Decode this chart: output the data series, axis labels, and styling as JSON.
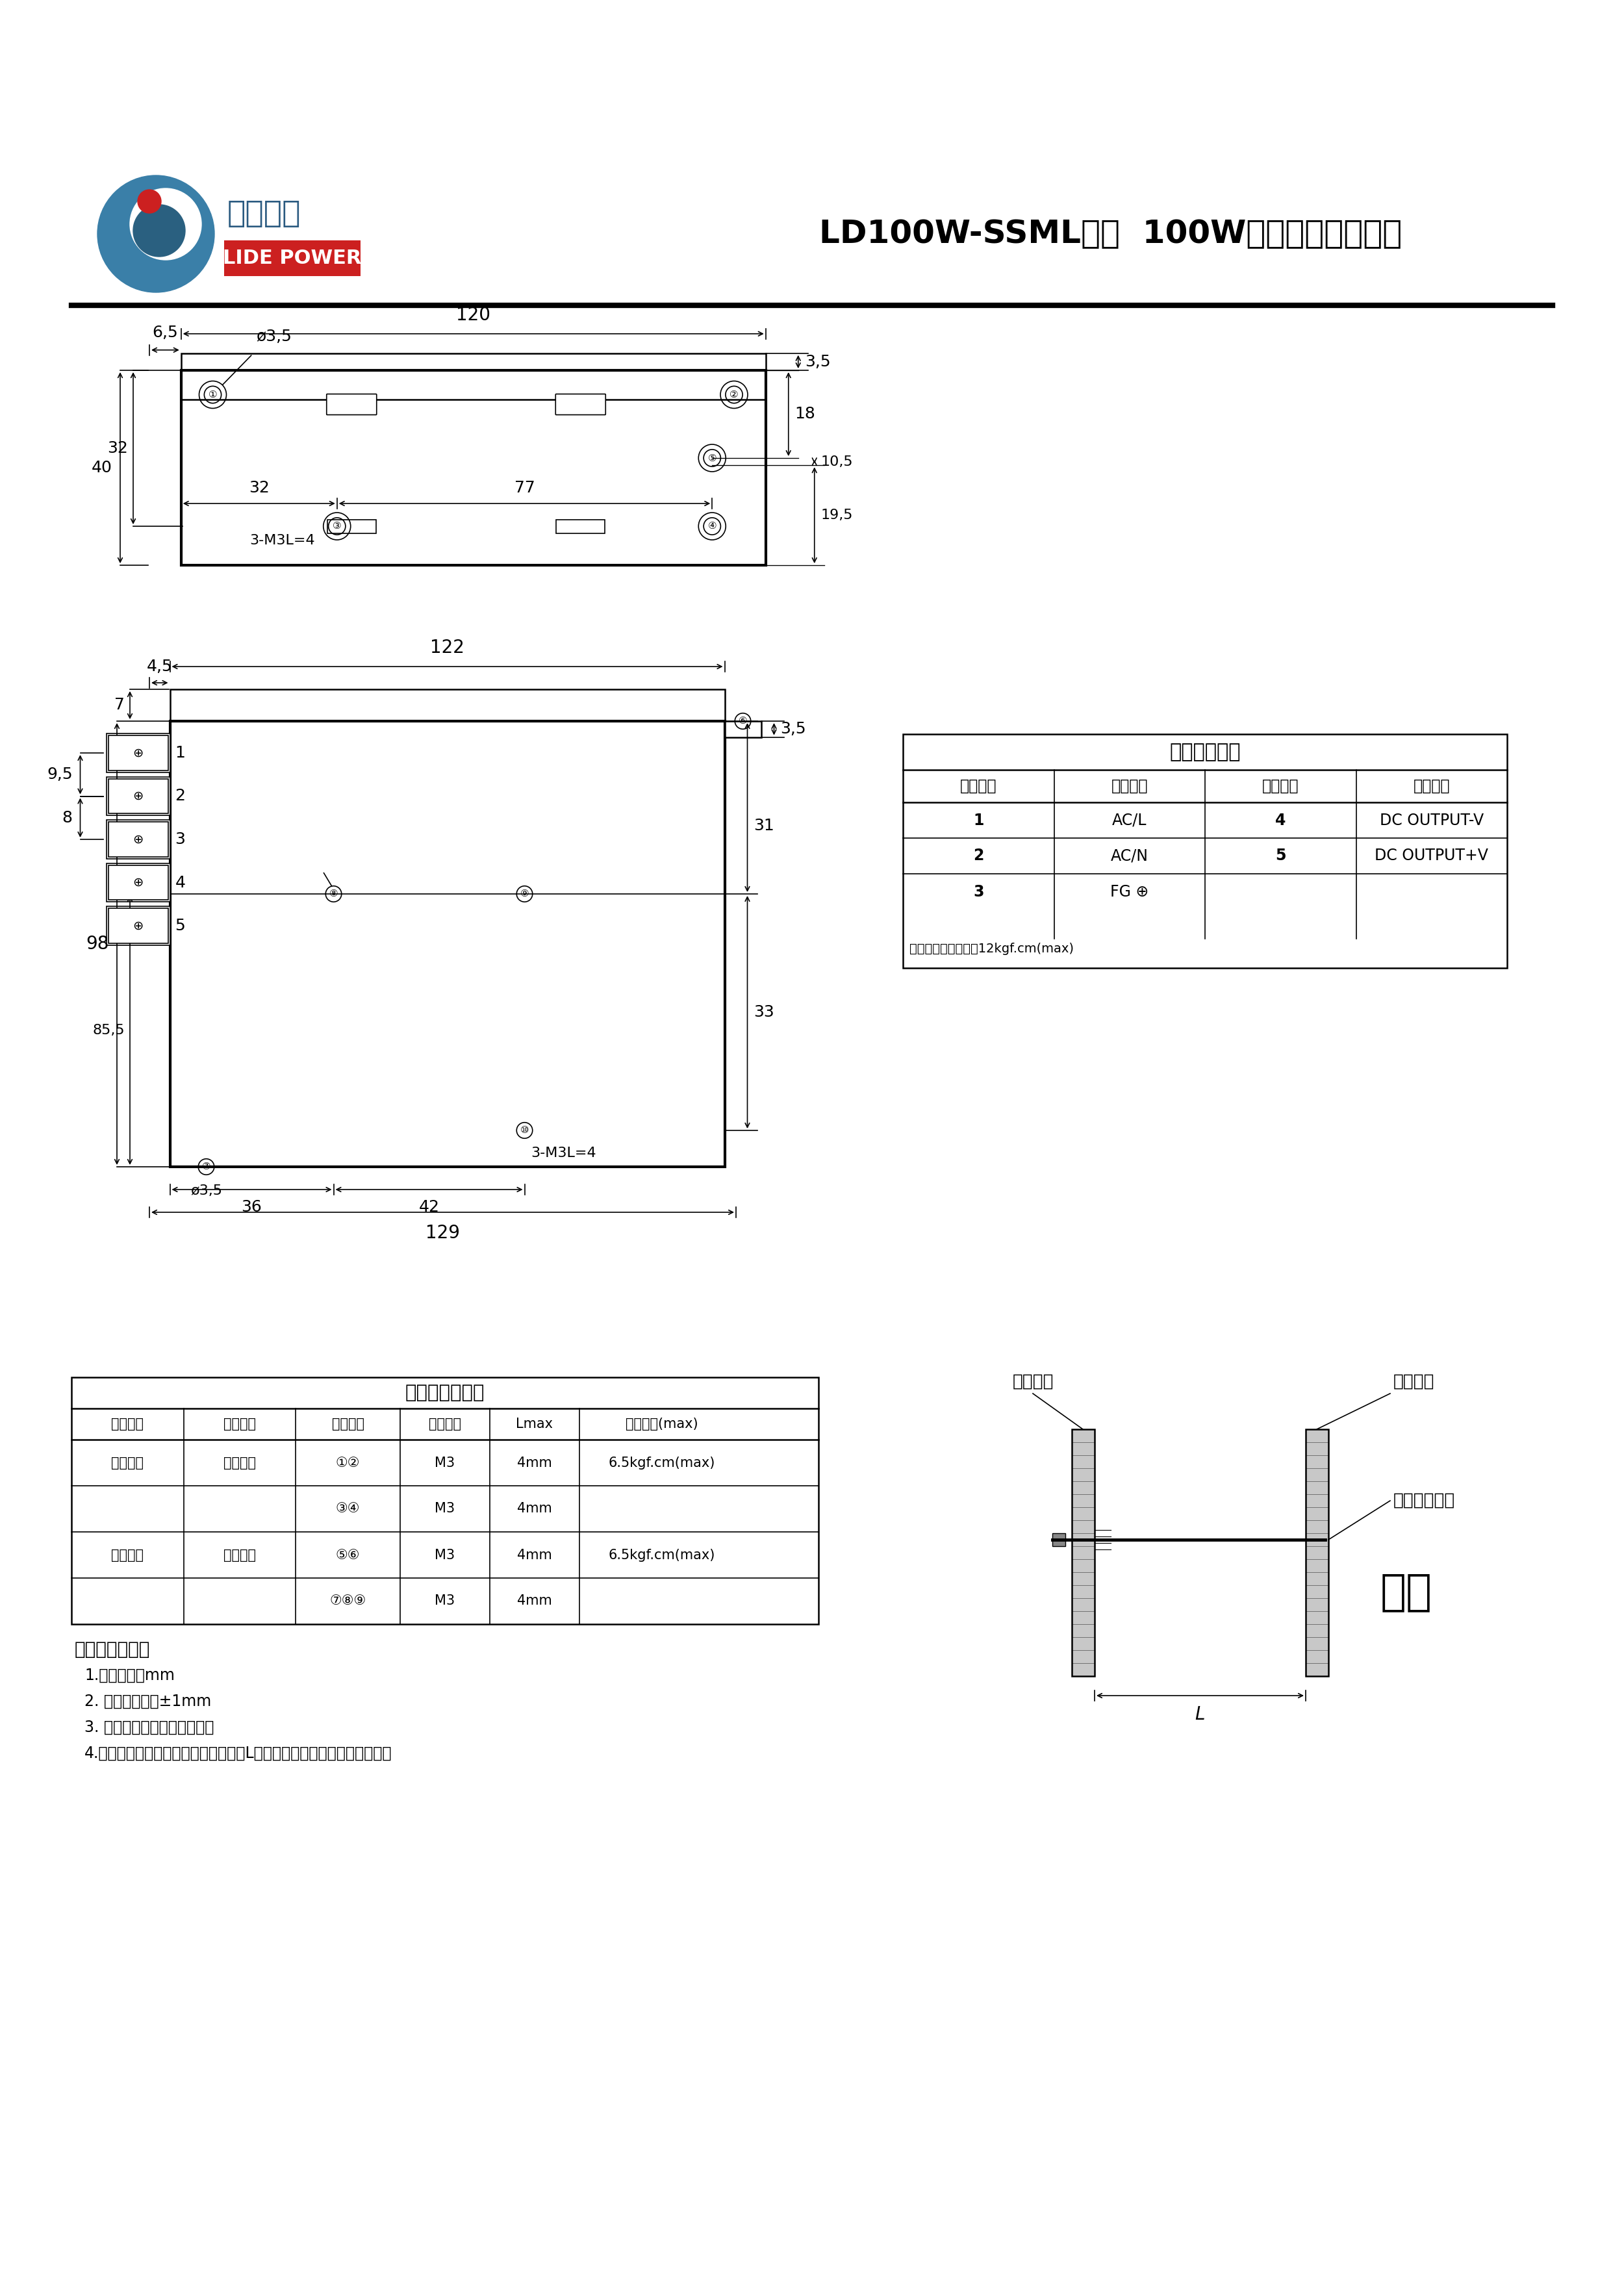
{
  "page_width": 24.8,
  "page_height": 35.08,
  "bg_color": "#ffffff",
  "header_title": "LD100W-SSML系列  100W单组输出开关电源",
  "company_name": "力德电源",
  "company_en": "LIDE POWER",
  "terminal_table": {
    "title": "端子脚位定义",
    "headers": [
      "引脚编号",
      "引脚功能",
      "引脚编号",
      "引脚功能"
    ],
    "rows": [
      [
        "1",
        "AC/L",
        "4",
        "DC OUTPUT-V"
      ],
      [
        "2",
        "AC/N",
        "5",
        "DC OUTPUT+V"
      ],
      [
        "3",
        "FG ⊕",
        "",
        ""
      ]
    ],
    "note": "注：端子螺丝扣矩为12kgf.cm(max)"
  },
  "install_table": {
    "title": "外部安装孔参考",
    "headers": [
      "安装方位",
      "安装方式",
      "安装位号",
      "螺丝规格",
      "Lmax",
      "安装扈尼(max)"
    ],
    "r1c1": "侧面安装",
    "r1c2": "螺丝固定",
    "r1c3": "①②",
    "r3c1": "底面安装",
    "r3c2": "螺丝固定",
    "r3c3": "⑤⑥",
    "r2c3": "③④",
    "r4c3": "⑦⑧⑨",
    "torque1": "6.5kgf.cm(max)",
    "torque2": "6.5kgf.cm(max)"
  },
  "install_notes_title": "安装注意事项：",
  "install_notes": [
    "1.尺寸单位：mm",
    "2. 未标注公差为±1mm",
    "3. 选择对模块最佳的安装方式",
    "4.为保证安全，螺丝装入电源机壳长度L（如右图所示）要满足上表所示。"
  ],
  "demo_customer": "客户系统",
  "demo_case": "电源机壳",
  "demo_screw": "电源固定螺丝",
  "demo_title": "示图"
}
